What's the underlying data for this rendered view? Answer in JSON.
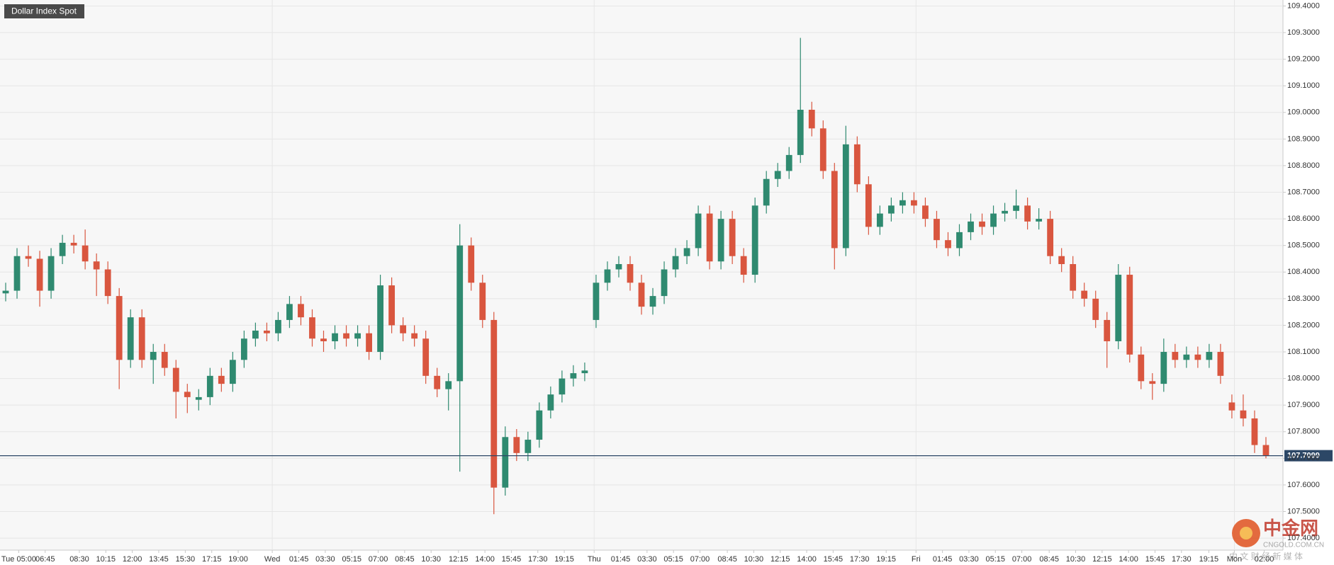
{
  "chart_data": {
    "type": "candlestick",
    "title": "Dollar Index Spot",
    "up_color": "#2f8a70",
    "down_color": "#d9563f",
    "grid": true,
    "xlim": [
      0,
      113
    ],
    "ylim": [
      107.355,
      109.4225
    ],
    "yticks": [
      {
        "value": 107.4,
        "label": "107.4000"
      },
      {
        "value": 107.5,
        "label": "107.5000"
      },
      {
        "value": 107.6,
        "label": "107.6000"
      },
      {
        "value": 107.7,
        "label": "107.7000"
      },
      {
        "value": 107.8,
        "label": "107.8000"
      },
      {
        "value": 107.9,
        "label": "107.9000"
      },
      {
        "value": 108.0,
        "label": "108.0000"
      },
      {
        "value": 108.1,
        "label": "108.1000"
      },
      {
        "value": 108.2,
        "label": "108.2000"
      },
      {
        "value": 108.3,
        "label": "108.3000"
      },
      {
        "value": 108.4,
        "label": "108.4000"
      },
      {
        "value": 108.5,
        "label": "108.5000"
      },
      {
        "value": 108.6,
        "label": "108.6000"
      },
      {
        "value": 108.7,
        "label": "108.7000"
      },
      {
        "value": 108.8,
        "label": "108.8000"
      },
      {
        "value": 108.9,
        "label": "108.9000"
      },
      {
        "value": 109.0,
        "label": "109.0000"
      },
      {
        "value": 109.1,
        "label": "109.1000"
      },
      {
        "value": 109.2,
        "label": "109.2000"
      },
      {
        "value": 109.3,
        "label": "109.3000"
      },
      {
        "value": 109.4,
        "label": "109.4000"
      }
    ],
    "xticks": [
      {
        "value": 1.65,
        "label": "Tue 05:00"
      },
      {
        "value": 3.98,
        "label": "06:45"
      },
      {
        "value": 6.99,
        "label": "08:30"
      },
      {
        "value": 9.32,
        "label": "10:15"
      },
      {
        "value": 11.65,
        "label": "12:00"
      },
      {
        "value": 13.98,
        "label": "13:45"
      },
      {
        "value": 16.32,
        "label": "15:30"
      },
      {
        "value": 18.65,
        "label": "17:15"
      },
      {
        "value": 20.98,
        "label": "19:00"
      },
      {
        "value": 23.98,
        "label": "Wed"
      },
      {
        "value": 26.32,
        "label": "01:45"
      },
      {
        "value": 28.65,
        "label": "03:30"
      },
      {
        "value": 30.98,
        "label": "05:15"
      },
      {
        "value": 33.31,
        "label": "07:00"
      },
      {
        "value": 35.64,
        "label": "08:45"
      },
      {
        "value": 37.97,
        "label": "10:30"
      },
      {
        "value": 40.38,
        "label": "12:15"
      },
      {
        "value": 42.71,
        "label": "14:00"
      },
      {
        "value": 45.04,
        "label": "15:45"
      },
      {
        "value": 47.37,
        "label": "17:30"
      },
      {
        "value": 49.7,
        "label": "19:15"
      },
      {
        "value": 52.33,
        "label": "Thu"
      },
      {
        "value": 54.66,
        "label": "01:45"
      },
      {
        "value": 56.99,
        "label": "03:30"
      },
      {
        "value": 59.32,
        "label": "05:15"
      },
      {
        "value": 61.65,
        "label": "07:00"
      },
      {
        "value": 64.06,
        "label": "08:45"
      },
      {
        "value": 66.39,
        "label": "10:30"
      },
      {
        "value": 68.72,
        "label": "12:15"
      },
      {
        "value": 71.05,
        "label": "14:00"
      },
      {
        "value": 73.38,
        "label": "15:45"
      },
      {
        "value": 75.71,
        "label": "17:30"
      },
      {
        "value": 78.05,
        "label": "19:15"
      },
      {
        "value": 80.68,
        "label": "Fri"
      },
      {
        "value": 83.01,
        "label": "01:45"
      },
      {
        "value": 85.34,
        "label": "03:30"
      },
      {
        "value": 87.67,
        "label": "05:15"
      },
      {
        "value": 90.0,
        "label": "07:00"
      },
      {
        "value": 92.41,
        "label": "08:45"
      },
      {
        "value": 94.74,
        "label": "10:30"
      },
      {
        "value": 97.07,
        "label": "12:15"
      },
      {
        "value": 99.4,
        "label": "14:00"
      },
      {
        "value": 101.73,
        "label": "15:45"
      },
      {
        "value": 104.06,
        "label": "17:30"
      },
      {
        "value": 106.47,
        "label": "19:15"
      },
      {
        "value": 108.72,
        "label": "Mon"
      },
      {
        "value": 111.35,
        "label": "02:00"
      }
    ],
    "last_price": 107.7099,
    "candles": [
      [
        108.32,
        108.36,
        108.29,
        108.33
      ],
      [
        108.33,
        108.49,
        108.3,
        108.46
      ],
      [
        108.46,
        108.5,
        108.42,
        108.45
      ],
      [
        108.45,
        108.48,
        108.27,
        108.33
      ],
      [
        108.33,
        108.49,
        108.3,
        108.46
      ],
      [
        108.46,
        108.54,
        108.43,
        108.51
      ],
      [
        108.51,
        108.54,
        108.47,
        108.5
      ],
      [
        108.5,
        108.56,
        108.41,
        108.44
      ],
      [
        108.44,
        108.47,
        108.31,
        108.41
      ],
      [
        108.41,
        108.44,
        108.28,
        108.31
      ],
      [
        108.31,
        108.34,
        107.96,
        108.07
      ],
      [
        108.07,
        108.26,
        108.04,
        108.23
      ],
      [
        108.23,
        108.26,
        108.04,
        108.07
      ],
      [
        108.07,
        108.13,
        107.98,
        108.1
      ],
      [
        108.1,
        108.13,
        108.01,
        108.04
      ],
      [
        108.04,
        108.07,
        107.85,
        107.95
      ],
      [
        107.95,
        107.98,
        107.87,
        107.93
      ],
      [
        107.92,
        107.96,
        107.88,
        107.93
      ],
      [
        107.93,
        108.04,
        107.9,
        108.01
      ],
      [
        108.01,
        108.04,
        107.95,
        107.98
      ],
      [
        107.98,
        108.1,
        107.95,
        108.07
      ],
      [
        108.07,
        108.18,
        108.04,
        108.15
      ],
      [
        108.15,
        108.21,
        108.12,
        108.18
      ],
      [
        108.18,
        108.21,
        108.14,
        108.17
      ],
      [
        108.17,
        108.25,
        108.14,
        108.22
      ],
      [
        108.22,
        108.31,
        108.19,
        108.28
      ],
      [
        108.28,
        108.31,
        108.2,
        108.23
      ],
      [
        108.23,
        108.26,
        108.12,
        108.15
      ],
      [
        108.15,
        108.18,
        108.1,
        108.14
      ],
      [
        108.14,
        108.2,
        108.11,
        108.17
      ],
      [
        108.17,
        108.2,
        108.12,
        108.15
      ],
      [
        108.15,
        108.2,
        108.12,
        108.17
      ],
      [
        108.17,
        108.2,
        108.07,
        108.1
      ],
      [
        108.1,
        108.39,
        108.07,
        108.35
      ],
      [
        108.35,
        108.38,
        108.17,
        108.2
      ],
      [
        108.2,
        108.23,
        108.14,
        108.17
      ],
      [
        108.17,
        108.2,
        108.12,
        108.15
      ],
      [
        108.15,
        108.18,
        107.98,
        108.01
      ],
      [
        108.01,
        108.04,
        107.93,
        107.96
      ],
      [
        107.96,
        108.02,
        107.88,
        107.99
      ],
      [
        107.99,
        108.58,
        107.65,
        108.5
      ],
      [
        108.5,
        108.53,
        108.33,
        108.36
      ],
      [
        108.36,
        108.39,
        108.19,
        108.22
      ],
      [
        108.22,
        108.25,
        107.49,
        107.59
      ],
      [
        107.59,
        107.82,
        107.56,
        107.78
      ],
      [
        107.78,
        107.81,
        107.69,
        107.72
      ],
      [
        107.72,
        107.8,
        107.69,
        107.77
      ],
      [
        107.77,
        107.91,
        107.74,
        107.88
      ],
      [
        107.88,
        107.97,
        107.85,
        107.94
      ],
      [
        107.94,
        108.03,
        107.91,
        108.0
      ],
      [
        108.0,
        108.05,
        107.97,
        108.02
      ],
      [
        108.02,
        108.06,
        107.99,
        108.03
      ],
      [
        108.22,
        108.39,
        108.19,
        108.36
      ],
      [
        108.36,
        108.44,
        108.33,
        108.41
      ],
      [
        108.41,
        108.46,
        108.38,
        108.43
      ],
      [
        108.43,
        108.46,
        108.33,
        108.36
      ],
      [
        108.36,
        108.39,
        108.24,
        108.27
      ],
      [
        108.27,
        108.34,
        108.24,
        108.31
      ],
      [
        108.31,
        108.44,
        108.28,
        108.41
      ],
      [
        108.41,
        108.49,
        108.38,
        108.46
      ],
      [
        108.46,
        108.52,
        108.43,
        108.49
      ],
      [
        108.49,
        108.65,
        108.46,
        108.62
      ],
      [
        108.62,
        108.65,
        108.41,
        108.44
      ],
      [
        108.44,
        108.63,
        108.41,
        108.6
      ],
      [
        108.6,
        108.63,
        108.43,
        108.46
      ],
      [
        108.46,
        108.49,
        108.36,
        108.39
      ],
      [
        108.39,
        108.68,
        108.36,
        108.65
      ],
      [
        108.65,
        108.78,
        108.62,
        108.75
      ],
      [
        108.75,
        108.81,
        108.72,
        108.78
      ],
      [
        108.78,
        108.87,
        108.75,
        108.84
      ],
      [
        108.84,
        109.28,
        108.81,
        109.01
      ],
      [
        109.01,
        109.04,
        108.91,
        108.94
      ],
      [
        108.94,
        108.97,
        108.75,
        108.78
      ],
      [
        108.78,
        108.81,
        108.41,
        108.49
      ],
      [
        108.49,
        108.95,
        108.46,
        108.88
      ],
      [
        108.88,
        108.91,
        108.7,
        108.73
      ],
      [
        108.73,
        108.76,
        108.54,
        108.57
      ],
      [
        108.57,
        108.65,
        108.54,
        108.62
      ],
      [
        108.62,
        108.68,
        108.59,
        108.65
      ],
      [
        108.65,
        108.7,
        108.62,
        108.67
      ],
      [
        108.67,
        108.7,
        108.62,
        108.65
      ],
      [
        108.65,
        108.68,
        108.57,
        108.6
      ],
      [
        108.6,
        108.63,
        108.49,
        108.52
      ],
      [
        108.52,
        108.55,
        108.46,
        108.49
      ],
      [
        108.49,
        108.58,
        108.46,
        108.55
      ],
      [
        108.55,
        108.62,
        108.52,
        108.59
      ],
      [
        108.59,
        108.62,
        108.54,
        108.57
      ],
      [
        108.57,
        108.65,
        108.54,
        108.62
      ],
      [
        108.62,
        108.66,
        108.59,
        108.63
      ],
      [
        108.63,
        108.71,
        108.6,
        108.65
      ],
      [
        108.65,
        108.68,
        108.56,
        108.59
      ],
      [
        108.59,
        108.64,
        108.56,
        108.6
      ],
      [
        108.6,
        108.63,
        108.43,
        108.46
      ],
      [
        108.46,
        108.49,
        108.4,
        108.43
      ],
      [
        108.43,
        108.46,
        108.3,
        108.33
      ],
      [
        108.33,
        108.36,
        108.27,
        108.3
      ],
      [
        108.3,
        108.33,
        108.19,
        108.22
      ],
      [
        108.22,
        108.25,
        108.04,
        108.14
      ],
      [
        108.14,
        108.43,
        108.11,
        108.39
      ],
      [
        108.39,
        108.42,
        108.06,
        108.09
      ],
      [
        108.09,
        108.12,
        107.96,
        107.99
      ],
      [
        107.99,
        108.02,
        107.92,
        107.98
      ],
      [
        107.98,
        108.15,
        107.95,
        108.1
      ],
      [
        108.1,
        108.13,
        108.04,
        108.07
      ],
      [
        108.07,
        108.12,
        108.04,
        108.09
      ],
      [
        108.09,
        108.12,
        108.04,
        108.07
      ],
      [
        108.07,
        108.13,
        108.04,
        108.1
      ],
      [
        108.1,
        108.13,
        107.98,
        108.01
      ],
      [
        107.91,
        107.94,
        107.85,
        107.88
      ],
      [
        107.88,
        107.94,
        107.82,
        107.85
      ],
      [
        107.85,
        107.88,
        107.72,
        107.75
      ],
      [
        107.75,
        107.78,
        107.7,
        107.71
      ]
    ],
    "watermark": {
      "logo": "中金网",
      "domain": "CNGOLD.COM.CN",
      "slogan": "中 文 财 经 新 媒 体"
    }
  }
}
